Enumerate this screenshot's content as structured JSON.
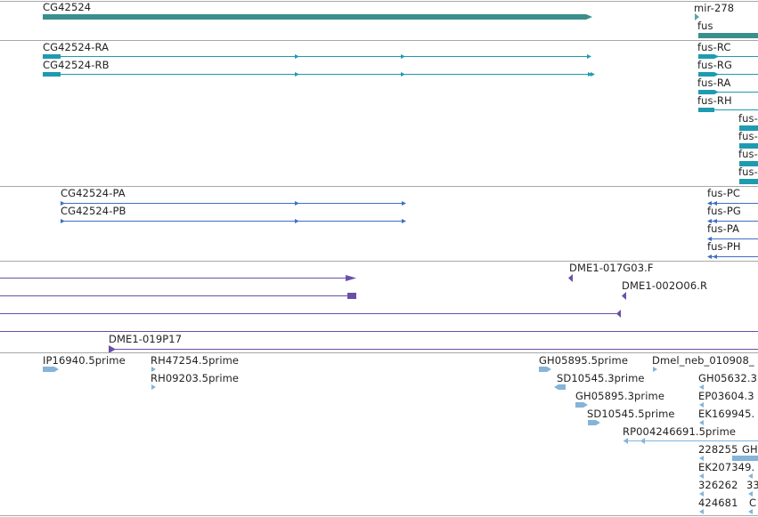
{
  "colors": {
    "gene": "#3a8f8c",
    "mrna": "#1e9bb0",
    "protein": "#3e6fc4",
    "clone": "#6a4fa8",
    "est": "#84b4d8",
    "separator": "#a8a8a8"
  },
  "gene_track": {
    "features": [
      {
        "label": "CG42524"
      },
      {
        "label": "mir-278"
      },
      {
        "label": "fus"
      }
    ]
  },
  "transcript_track": {
    "features": [
      {
        "label": "CG42524-RA"
      },
      {
        "label": "CG42524-RB"
      },
      {
        "label": "fus-RC"
      },
      {
        "label": "fus-RG"
      },
      {
        "label": "fus-RA"
      },
      {
        "label": "fus-RH"
      },
      {
        "label": "fus-"
      },
      {
        "label": "fus-"
      },
      {
        "label": "fus-"
      },
      {
        "label": "fus-"
      }
    ]
  },
  "protein_track": {
    "features": [
      {
        "label": "CG42524-PA"
      },
      {
        "label": "CG42524-PB"
      },
      {
        "label": "fus-PC"
      },
      {
        "label": "fus-PG"
      },
      {
        "label": "fus-PA"
      },
      {
        "label": "fus-PH"
      }
    ]
  },
  "clone_track": {
    "features": [
      {
        "label": "DME1-017G03.F"
      },
      {
        "label": "DME1-002O06.R"
      },
      {
        "label": "DME1-019P17"
      }
    ]
  },
  "est_track": {
    "features": [
      {
        "label": "IP16940.5prime"
      },
      {
        "label": "RH47254.5prime"
      },
      {
        "label": "RH09203.5prime"
      },
      {
        "label": "GH05895.5prime"
      },
      {
        "label": "Dmel_neb_010908_"
      },
      {
        "label": "SD10545.3prime"
      },
      {
        "label": "GH05632.3"
      },
      {
        "label": "GH05895.3prime"
      },
      {
        "label": "EP03604.3"
      },
      {
        "label": "SD10545.5prime"
      },
      {
        "label": "EK169945."
      },
      {
        "label": "RP004246691.5prime"
      },
      {
        "label": "228255"
      },
      {
        "label": "GH"
      },
      {
        "label": "EK207349."
      },
      {
        "label": "326262"
      },
      {
        "label": "33"
      },
      {
        "label": "424681"
      },
      {
        "label": "C"
      }
    ]
  }
}
